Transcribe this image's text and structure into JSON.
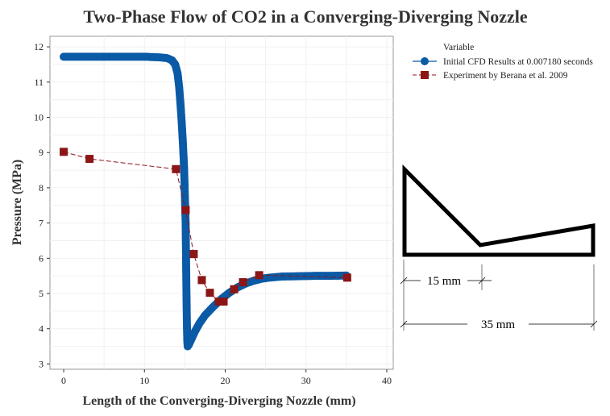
{
  "chart_data": {
    "type": "line",
    "title": "Two-Phase Flow of CO2 in a Converging-Diverging Nozzle",
    "xlabel": "Length of the Converging-Diverging Nozzle (mm)",
    "ylabel": "Pressure (MPa)",
    "xlim": [
      -1.7,
      40.8
    ],
    "ylim": [
      2.85,
      12.3
    ],
    "xticks": [
      "0",
      "10",
      "20",
      "30",
      "40"
    ],
    "yticks": [
      "3",
      "4",
      "5",
      "6",
      "7",
      "8",
      "9",
      "10",
      "11",
      "12"
    ],
    "xtick_values": [
      0,
      10,
      20,
      30,
      40
    ],
    "ytick_values": [
      3,
      4,
      5,
      6,
      7,
      8,
      9,
      10,
      11,
      12
    ],
    "grid": true,
    "legend": {
      "title": "Variable",
      "placement": "top-right"
    },
    "series": [
      {
        "name": "Initial CFD Results at 0.007180 seconds",
        "color": "#0a5aa6",
        "marker": "circle",
        "x": [
          0,
          2,
          4,
          6,
          8,
          10,
          11,
          12,
          12.8,
          13.4,
          13.8,
          14.1,
          14.3,
          14.45,
          14.6,
          14.75,
          14.9,
          15.0,
          15.1,
          15.15,
          15.2,
          15.25,
          15.3,
          15.35,
          15.5,
          15.8,
          16.2,
          16.8,
          17.5,
          18.5,
          19.5,
          20.5,
          21.5,
          22.5,
          23.5,
          24.5,
          25.5,
          27,
          29,
          31,
          33,
          35
        ],
        "y": [
          11.72,
          11.72,
          11.72,
          11.72,
          11.72,
          11.72,
          11.71,
          11.7,
          11.68,
          11.62,
          11.5,
          11.25,
          10.85,
          10.4,
          9.9,
          9.3,
          8.6,
          7.8,
          7.0,
          6.0,
          5.0,
          4.2,
          3.65,
          3.5,
          3.55,
          3.7,
          3.9,
          4.15,
          4.38,
          4.62,
          4.84,
          5.02,
          5.17,
          5.28,
          5.36,
          5.42,
          5.45,
          5.48,
          5.49,
          5.5,
          5.5,
          5.51
        ]
      },
      {
        "name": "Experiment by Berana et al. 2009",
        "color": "#8c1515",
        "marker": "square",
        "x": [
          0,
          3.2,
          13.9,
          15.1,
          16.1,
          17.1,
          18.1,
          19.2,
          19.8,
          21.1,
          22.2,
          24.2,
          35.1
        ],
        "y": [
          9.02,
          8.82,
          8.53,
          7.37,
          6.12,
          5.38,
          5.02,
          4.77,
          4.77,
          5.12,
          5.32,
          5.52,
          5.45
        ]
      }
    ]
  },
  "nozzle_diagram": {
    "dim_converging": "15 mm",
    "dim_total": "35 mm"
  }
}
